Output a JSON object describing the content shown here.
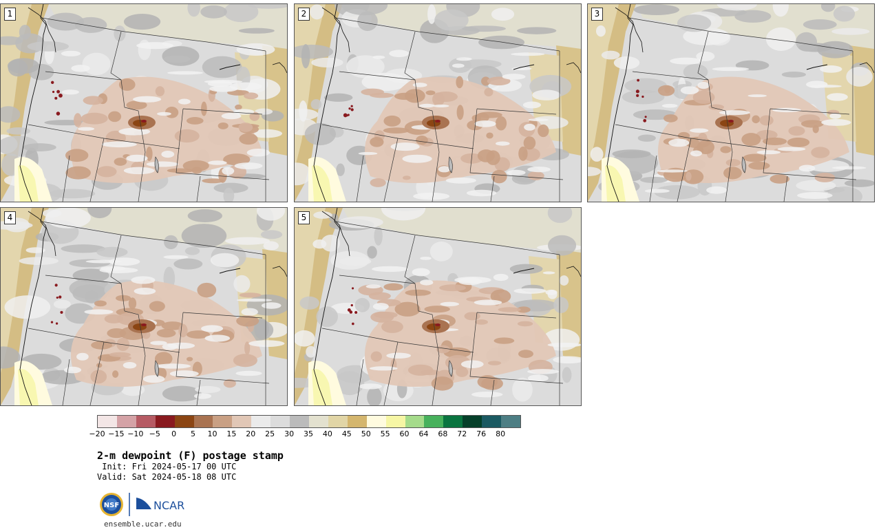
{
  "panels": [
    {
      "label": "1"
    },
    {
      "label": "2"
    },
    {
      "label": "3"
    },
    {
      "label": "4"
    },
    {
      "label": "5"
    }
  ],
  "colorbar": {
    "colors": [
      "#f3e6e6",
      "#d4a2a6",
      "#b65b64",
      "#891a1f",
      "#8b4513",
      "#a97351",
      "#c9a084",
      "#e1c7b6",
      "#ebebeb",
      "#dcdcdc",
      "#bbbbbb",
      "#e3e1cf",
      "#e1d5a6",
      "#d4b66e",
      "#fffbdf",
      "#f6f6a5",
      "#a5db8b",
      "#47b15c",
      "#0a7440",
      "#06402a",
      "#1b5a62",
      "#4d7e84"
    ],
    "tick_labels": [
      "−20",
      "−15",
      "−10",
      "−5",
      "0",
      "5",
      "10",
      "15",
      "20",
      "25",
      "30",
      "35",
      "40",
      "45",
      "50",
      "55",
      "60",
      "64",
      "68",
      "72",
      "76",
      "80"
    ]
  },
  "title": "2-m dewpoint (F) postage stamp",
  "init": " Init: Fri 2024-05-17 00 UTC",
  "valid": "Valid: Sat 2024-05-18 08 UTC",
  "logos": {
    "nsf": "NSF",
    "ncar": "NCAR"
  },
  "site": "ensemble.ucar.edu"
}
